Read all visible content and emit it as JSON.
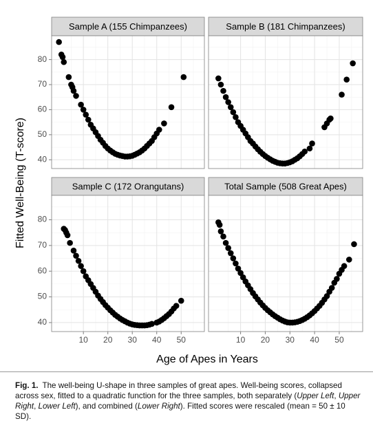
{
  "figure": {
    "x_label": "Age of Apes in Years",
    "y_label": "Fitted Well-Being (T-score)"
  },
  "chart_data": [
    {
      "type": "scatter",
      "title": "Sample A (155 Chimpanzees)",
      "color": "#000000",
      "x": [
        0,
        1,
        1.5,
        2,
        4,
        5,
        5.5,
        6,
        7,
        9,
        10,
        11,
        12,
        13,
        14,
        15,
        16,
        17,
        18,
        19,
        20,
        21,
        22,
        23,
        24,
        25,
        26,
        27,
        28,
        29,
        30,
        31,
        32,
        33,
        34,
        35,
        36,
        37,
        38,
        39,
        40,
        41,
        43,
        46,
        51
      ],
      "values": [
        87,
        82,
        81,
        79,
        73,
        70,
        69,
        67.5,
        65.5,
        62,
        60,
        58,
        56,
        54,
        52.5,
        51,
        49.5,
        48,
        46.8,
        45.5,
        44.5,
        43.7,
        43,
        42.4,
        42,
        41.7,
        41.5,
        41.3,
        41.3,
        41.4,
        41.6,
        42,
        42.5,
        43,
        43.7,
        44.5,
        45.5,
        46.5,
        47.5,
        49,
        50.5,
        52,
        54.5,
        61,
        73
      ],
      "xlim": [
        -3,
        59.5
      ],
      "ylim": [
        36.5,
        89.5
      ],
      "xticks": [
        10,
        20,
        30,
        40,
        50
      ],
      "yticks": [
        40,
        50,
        60,
        70,
        80
      ],
      "grid": true
    },
    {
      "type": "scatter",
      "title": "Sample B (181 Chimpanzees)",
      "color": "#000000",
      "x": [
        1,
        2,
        3,
        4,
        5,
        6,
        7,
        8,
        9,
        10,
        11,
        12,
        13,
        14,
        15,
        16,
        17,
        18,
        19,
        20,
        21,
        22,
        23,
        24,
        25,
        26,
        27,
        28,
        29,
        30,
        31,
        32,
        33,
        34,
        35,
        36,
        38,
        39,
        44,
        45,
        46,
        46.5,
        51,
        53,
        55.5
      ],
      "values": [
        72.5,
        70,
        67.5,
        65,
        63,
        61,
        59,
        57,
        55,
        53.5,
        52,
        50.5,
        49,
        47.5,
        46.5,
        45.3,
        44.2,
        43.2,
        42.3,
        41.5,
        40.8,
        40.2,
        39.6,
        39.2,
        38.8,
        38.6,
        38.5,
        38.5,
        38.7,
        39,
        39.4,
        40,
        40.6,
        41.4,
        42.3,
        43.3,
        44.5,
        46.5,
        53,
        54.5,
        56,
        56.5,
        66,
        72,
        78.5
      ],
      "xlim": [
        -3,
        59.5
      ],
      "ylim": [
        36.5,
        89.5
      ],
      "xticks": [
        10,
        20,
        30,
        40,
        50
      ],
      "yticks": [
        40,
        50,
        60,
        70,
        80
      ],
      "grid": true
    },
    {
      "type": "scatter",
      "title": "Sample C (172 Orangutans)",
      "color": "#000000",
      "x": [
        2,
        2.5,
        3,
        3.5,
        4.5,
        6,
        7,
        8,
        9,
        10,
        11,
        12,
        13,
        14,
        15,
        16,
        17,
        18,
        19,
        20,
        21,
        22,
        23,
        24,
        25,
        26,
        27,
        28,
        29,
        30,
        31,
        32,
        33,
        34,
        35,
        36,
        37,
        38,
        40,
        41,
        42,
        43,
        44,
        45,
        46,
        47,
        48,
        50
      ],
      "values": [
        76.5,
        76,
        75,
        74,
        71,
        68,
        66,
        64,
        62,
        60,
        58,
        56.5,
        55,
        53.5,
        52,
        50.5,
        49.2,
        48,
        46.8,
        45.8,
        44.8,
        43.9,
        43,
        42.3,
        41.6,
        41,
        40.5,
        40,
        39.6,
        39.3,
        39.1,
        39,
        38.9,
        38.9,
        38.9,
        39,
        39.2,
        39.5,
        40,
        40.4,
        41,
        41.7,
        42.5,
        43.3,
        44.3,
        45.5,
        46.5,
        48.5
      ],
      "xlim": [
        -3,
        59.5
      ],
      "ylim": [
        36.5,
        89.5
      ],
      "xticks": [
        10,
        20,
        30,
        40,
        50
      ],
      "yticks": [
        40,
        50,
        60,
        70,
        80
      ],
      "grid": true
    },
    {
      "type": "scatter",
      "title": "Total Sample (508 Great Apes)",
      "color": "#000000",
      "x": [
        1,
        1.5,
        2,
        3,
        4,
        5,
        6,
        7,
        8,
        9,
        10,
        11,
        12,
        13,
        14,
        15,
        16,
        17,
        18,
        19,
        20,
        21,
        22,
        23,
        24,
        25,
        26,
        27,
        28,
        29,
        30,
        31,
        32,
        33,
        34,
        35,
        36,
        37,
        38,
        39,
        40,
        41,
        42,
        43,
        44,
        45,
        46,
        47,
        48,
        49,
        50,
        51,
        52,
        54,
        56
      ],
      "values": [
        79,
        78,
        75.5,
        73.5,
        71,
        69,
        67,
        65,
        63,
        61,
        59.3,
        57.6,
        56,
        54.5,
        53,
        51.5,
        50.2,
        49,
        47.8,
        46.7,
        45.7,
        44.8,
        44,
        43.2,
        42.5,
        41.9,
        41.3,
        40.8,
        40.4,
        40.1,
        40,
        40,
        40.1,
        40.3,
        40.6,
        41,
        41.5,
        42.1,
        42.8,
        43.6,
        44.5,
        45.5,
        46.5,
        47.7,
        49,
        50.3,
        52,
        53.5,
        55.5,
        57,
        59,
        60.5,
        62,
        64.5,
        70.5
      ],
      "xlim": [
        -3,
        59.5
      ],
      "ylim": [
        36.5,
        89.5
      ],
      "xticks": [
        10,
        20,
        30,
        40,
        50
      ],
      "yticks": [
        40,
        50,
        60,
        70,
        80
      ],
      "grid": true
    }
  ],
  "caption": {
    "label": "Fig. 1.",
    "runs": [
      "The well-being U-shape in three samples of great apes. Well-being scores, collapsed across sex, fitted to a quadratic function for the three samples, both separately (",
      "Upper Left",
      ", ",
      "Upper Right",
      ", ",
      "Lower Left",
      "), and combined (",
      "Lower Right",
      "). Fitted scores were rescaled (mean = 50 ± 10 SD)."
    ]
  }
}
